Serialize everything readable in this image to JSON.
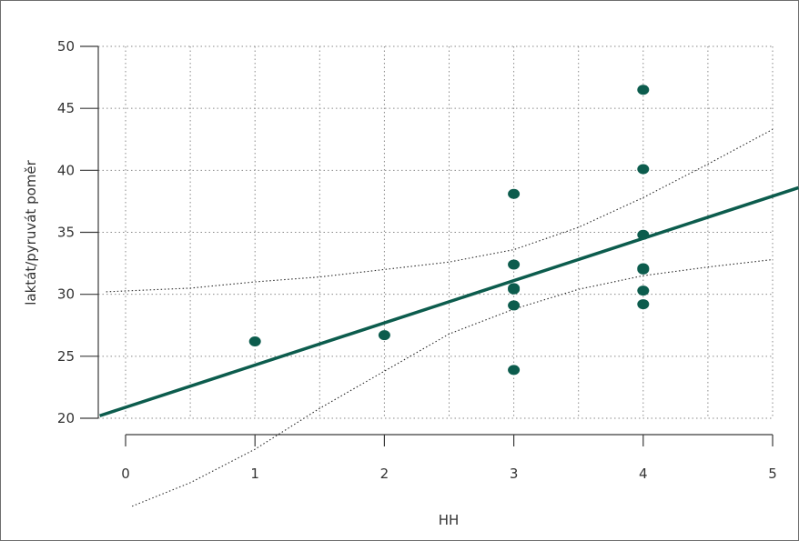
{
  "chart_data": {
    "type": "scatter",
    "xlabel": "HH",
    "ylabel": "laktát/pyruvát poměr",
    "xlim": [
      0,
      5
    ],
    "ylim": [
      20,
      50
    ],
    "x_ticks": [
      "0",
      "1",
      "2",
      "3",
      "4",
      "5"
    ],
    "y_ticks": [
      "20",
      "25",
      "30",
      "35",
      "40",
      "45",
      "50"
    ],
    "grid": true,
    "points": [
      {
        "x": 1,
        "y": 26.2
      },
      {
        "x": 2,
        "y": 26.7
      },
      {
        "x": 3,
        "y": 38.1
      },
      {
        "x": 3,
        "y": 32.4
      },
      {
        "x": 3,
        "y": 30.5
      },
      {
        "x": 3,
        "y": 30.4
      },
      {
        "x": 3,
        "y": 29.1
      },
      {
        "x": 3,
        "y": 23.9
      },
      {
        "x": 4,
        "y": 46.5
      },
      {
        "x": 4,
        "y": 40.1
      },
      {
        "x": 4,
        "y": 34.8
      },
      {
        "x": 4,
        "y": 32.1
      },
      {
        "x": 4,
        "y": 32.0
      },
      {
        "x": 4,
        "y": 30.3
      },
      {
        "x": 4,
        "y": 29.2
      }
    ],
    "regression_line": [
      {
        "x": -0.2,
        "y": 20.2
      },
      {
        "x": 5.2,
        "y": 38.6
      }
    ],
    "confidence_upper": [
      {
        "x": -0.15,
        "y": 30.2
      },
      {
        "x": 0.5,
        "y": 30.5
      },
      {
        "x": 1,
        "y": 31.0
      },
      {
        "x": 1.5,
        "y": 31.4
      },
      {
        "x": 2,
        "y": 32.0
      },
      {
        "x": 2.5,
        "y": 32.6
      },
      {
        "x": 3,
        "y": 33.6
      },
      {
        "x": 3.5,
        "y": 35.4
      },
      {
        "x": 4,
        "y": 37.8
      },
      {
        "x": 4.5,
        "y": 40.5
      },
      {
        "x": 5,
        "y": 43.3
      }
    ],
    "confidence_lower": [
      {
        "x": 0.05,
        "y": 12.9
      },
      {
        "x": 0.5,
        "y": 14.8
      },
      {
        "x": 1,
        "y": 17.5
      },
      {
        "x": 1.5,
        "y": 20.8
      },
      {
        "x": 2,
        "y": 23.8
      },
      {
        "x": 2.5,
        "y": 26.8
      },
      {
        "x": 3,
        "y": 28.8
      },
      {
        "x": 3.5,
        "y": 30.4
      },
      {
        "x": 4,
        "y": 31.5
      },
      {
        "x": 4.5,
        "y": 32.2
      },
      {
        "x": 5,
        "y": 32.8
      }
    ],
    "colors": {
      "points": "#0c5c4d",
      "regression": "#0c5c4d",
      "confidence": "#2a2a2a",
      "grid": "#8a8a8a",
      "axis": "#3a3a3a"
    }
  }
}
